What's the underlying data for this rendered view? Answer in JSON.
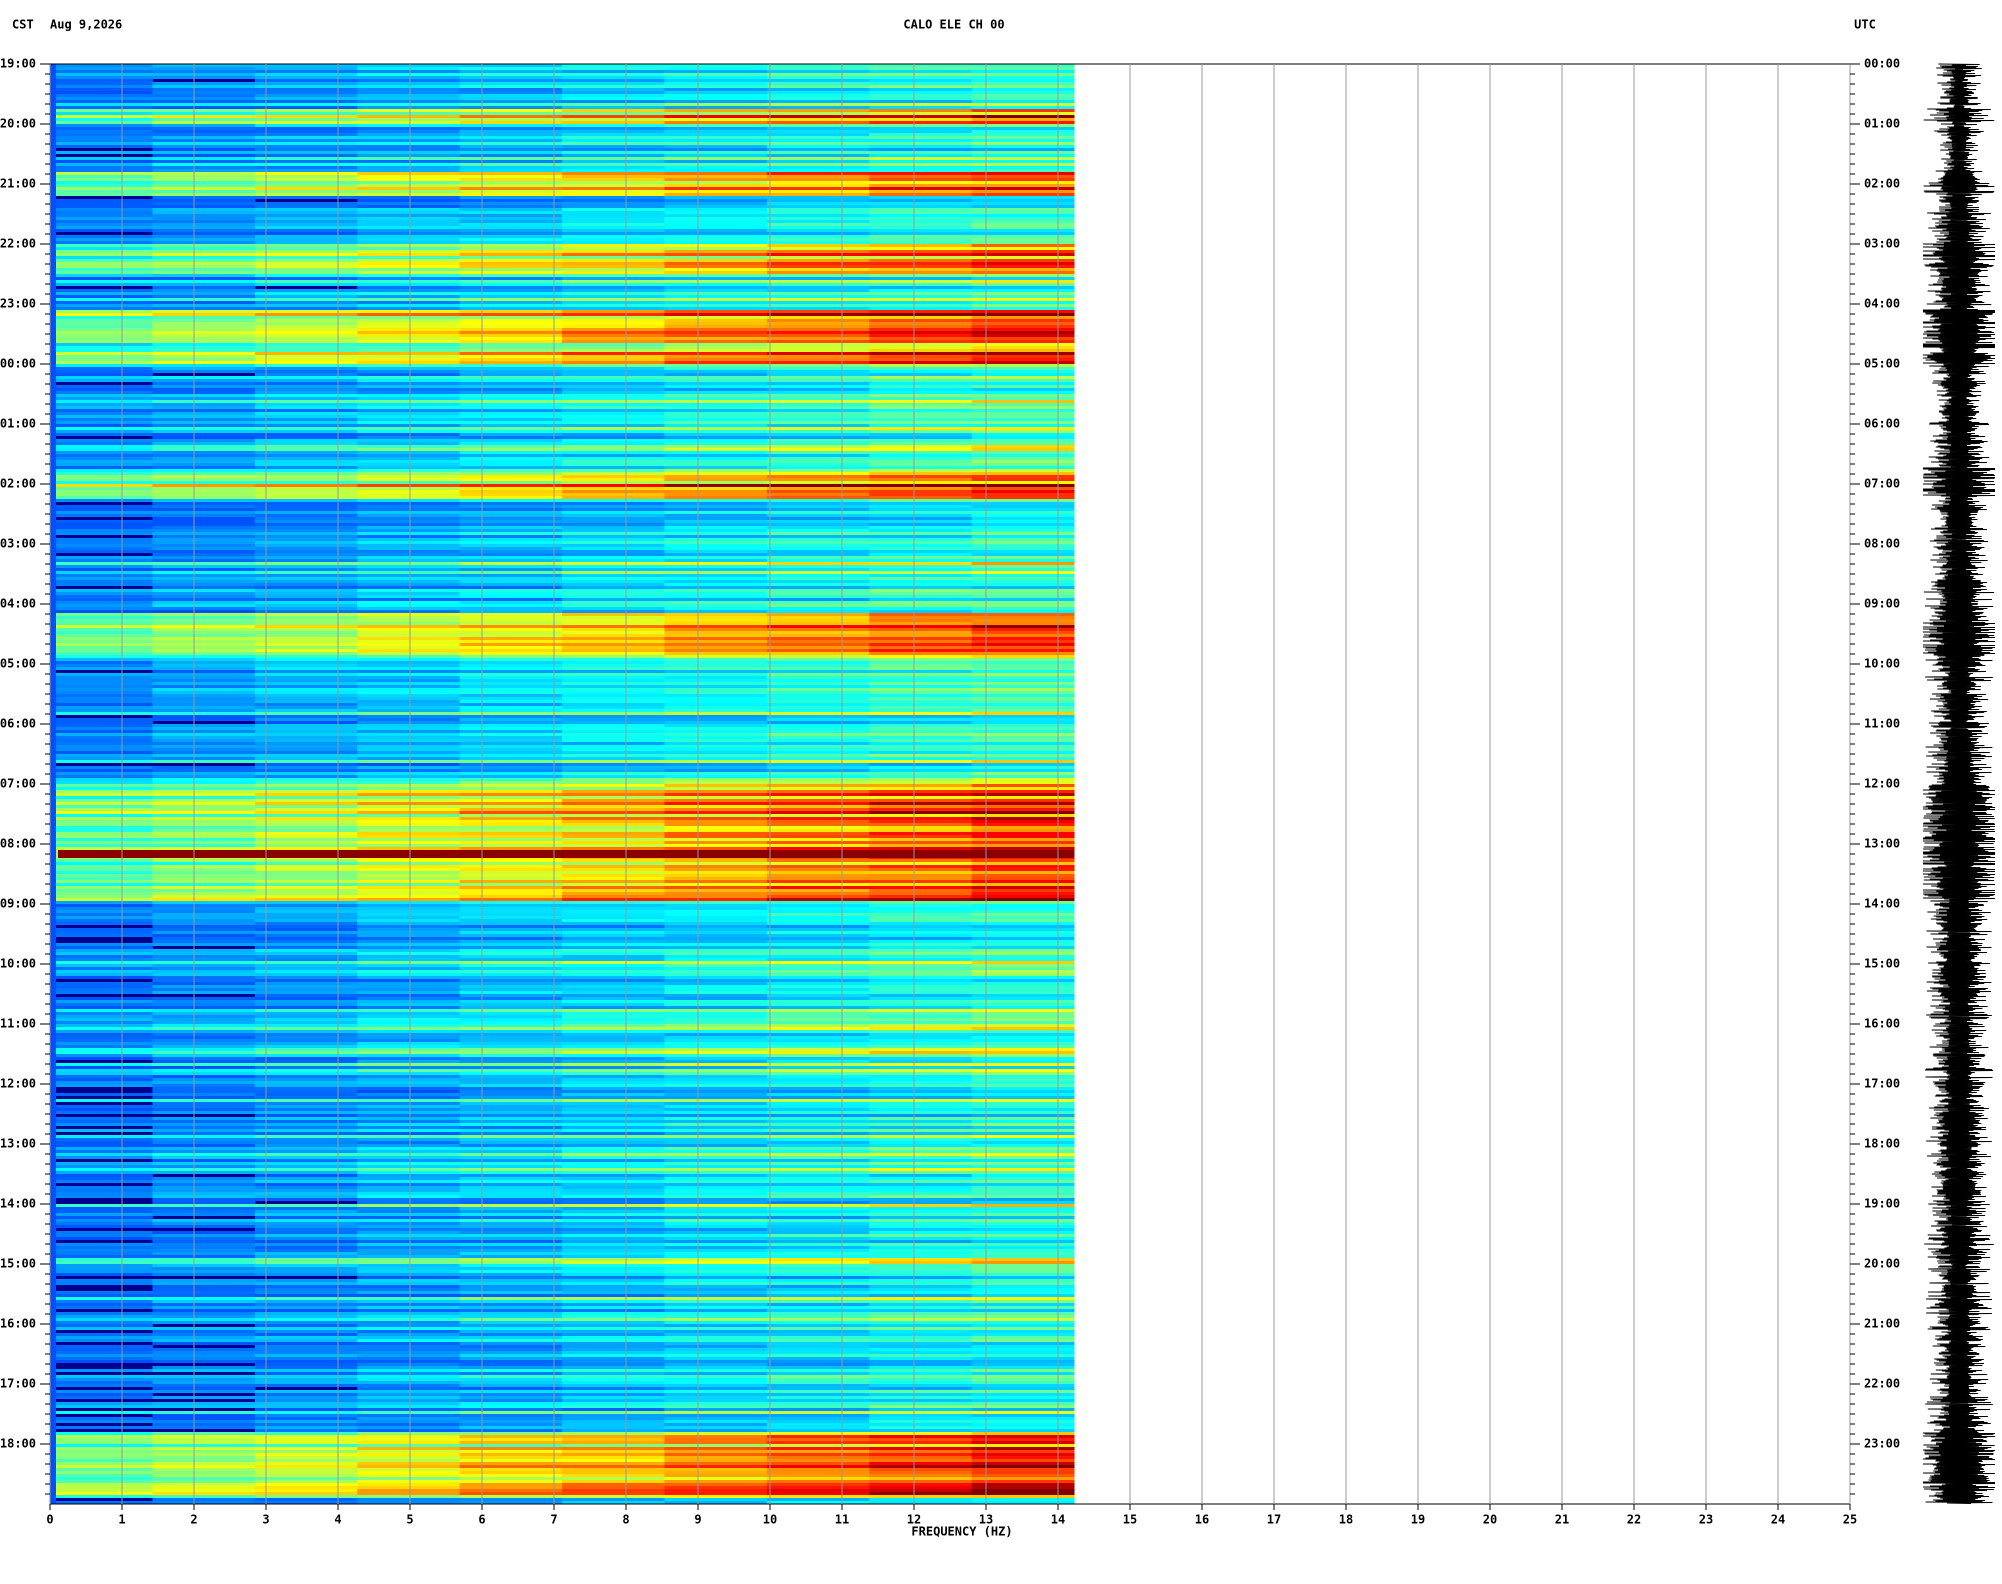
{
  "chart_data": {
    "type": "spectrogram",
    "title": "CALO ELE CH 00",
    "timezone_left": "CST",
    "date": "Aug 9,2026",
    "timezone_right": "UTC",
    "xlabel": "FREQUENCY (HZ)",
    "xlim": [
      0,
      25
    ],
    "xticks": [
      0,
      1,
      2,
      3,
      4,
      5,
      6,
      7,
      8,
      9,
      10,
      11,
      12,
      13,
      14,
      15,
      16,
      17,
      18,
      19,
      20,
      21,
      22,
      23,
      24,
      25
    ],
    "y_labels_left": [
      "19:00",
      "20:00",
      "21:00",
      "22:00",
      "23:00",
      "00:00",
      "01:00",
      "02:00",
      "03:00",
      "04:00",
      "05:00",
      "06:00",
      "07:00",
      "08:00",
      "09:00",
      "10:00",
      "11:00",
      "12:00",
      "13:00",
      "14:00",
      "15:00",
      "16:00",
      "17:00",
      "18:00"
    ],
    "y_labels_right": [
      "00:00",
      "01:00",
      "02:00",
      "03:00",
      "04:00",
      "05:00",
      "06:00",
      "07:00",
      "08:00",
      "09:00",
      "10:00",
      "11:00",
      "12:00",
      "13:00",
      "14:00",
      "15:00",
      "16:00",
      "17:00",
      "18:00",
      "19:00",
      "20:00",
      "21:00",
      "22:00",
      "23:00"
    ]
  }
}
